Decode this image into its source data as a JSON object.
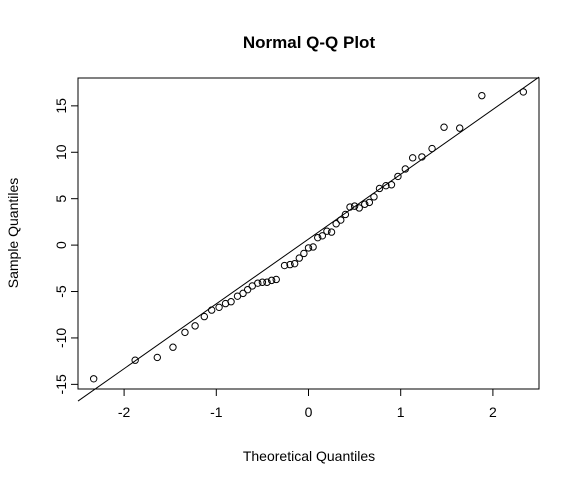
{
  "chart_data": {
    "type": "scatter",
    "title": "Normal Q-Q Plot",
    "xlabel": "Theoretical Quantiles",
    "ylabel": "Sample Quantiles",
    "xlim": [
      -2.5,
      2.5
    ],
    "ylim": [
      -15.5,
      18
    ],
    "xticks": [
      -2,
      -1,
      0,
      1,
      2
    ],
    "yticks": [
      -15,
      -10,
      -5,
      0,
      5,
      10,
      15
    ],
    "xtick_labels": [
      "-2",
      "-1",
      "0",
      "1",
      "2"
    ],
    "ytick_labels": [
      "-15",
      "-10",
      "-5",
      "0",
      "5",
      "10",
      "15"
    ],
    "grid": false,
    "reference_line": {
      "x1": -2.5,
      "y1": -16.8,
      "x2": 2.5,
      "y2": 18.1
    },
    "points": [
      [
        -2.33,
        -14.4
      ],
      [
        -1.88,
        -12.4
      ],
      [
        -1.64,
        -12.1
      ],
      [
        -1.47,
        -11.0
      ],
      [
        -1.34,
        -9.4
      ],
      [
        -1.23,
        -8.7
      ],
      [
        -1.13,
        -7.7
      ],
      [
        -1.05,
        -7.0
      ],
      [
        -0.97,
        -6.7
      ],
      [
        -0.9,
        -6.3
      ],
      [
        -0.84,
        -6.1
      ],
      [
        -0.77,
        -5.5
      ],
      [
        -0.71,
        -5.2
      ],
      [
        -0.66,
        -4.8
      ],
      [
        -0.61,
        -4.4
      ],
      [
        -0.55,
        -4.1
      ],
      [
        -0.5,
        -4.0
      ],
      [
        -0.45,
        -4.0
      ],
      [
        -0.4,
        -3.8
      ],
      [
        -0.35,
        -3.7
      ],
      [
        -0.26,
        -2.2
      ],
      [
        -0.2,
        -2.1
      ],
      [
        -0.15,
        -2.0
      ],
      [
        -0.1,
        -1.4
      ],
      [
        -0.05,
        -0.9
      ],
      [
        0.0,
        -0.3
      ],
      [
        0.05,
        -0.2
      ],
      [
        0.1,
        0.8
      ],
      [
        0.15,
        1.0
      ],
      [
        0.2,
        1.5
      ],
      [
        0.25,
        1.4
      ],
      [
        0.3,
        2.3
      ],
      [
        0.35,
        2.7
      ],
      [
        0.4,
        3.3
      ],
      [
        0.45,
        4.1
      ],
      [
        0.5,
        4.2
      ],
      [
        0.55,
        4.0
      ],
      [
        0.61,
        4.4
      ],
      [
        0.66,
        4.6
      ],
      [
        0.71,
        5.2
      ],
      [
        0.77,
        6.1
      ],
      [
        0.84,
        6.4
      ],
      [
        0.9,
        6.5
      ],
      [
        0.97,
        7.4
      ],
      [
        1.05,
        8.2
      ],
      [
        1.13,
        9.4
      ],
      [
        1.23,
        9.5
      ],
      [
        1.34,
        10.4
      ],
      [
        1.47,
        12.7
      ],
      [
        1.64,
        12.6
      ],
      [
        1.88,
        16.1
      ],
      [
        2.33,
        16.5
      ]
    ]
  }
}
